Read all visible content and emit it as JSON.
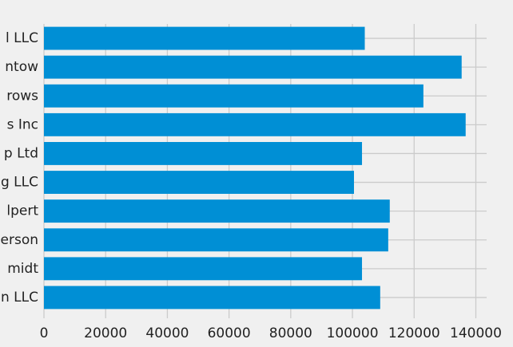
{
  "chart_data": {
    "type": "barh",
    "categories": [
      "l LLC",
      "ntow",
      "rows",
      "s Inc",
      "p Ltd",
      "g LLC",
      "lpert",
      "erson",
      "midt",
      "n LLC"
    ],
    "values": [
      104000,
      135400,
      123000,
      136700,
      103100,
      100500,
      112100,
      111600,
      103100,
      109000
    ],
    "color": "#008fd5",
    "xlim": [
      0,
      143500
    ],
    "xticks": [
      0,
      20000,
      40000,
      60000,
      80000,
      100000,
      120000,
      140000
    ],
    "grid": true
  }
}
